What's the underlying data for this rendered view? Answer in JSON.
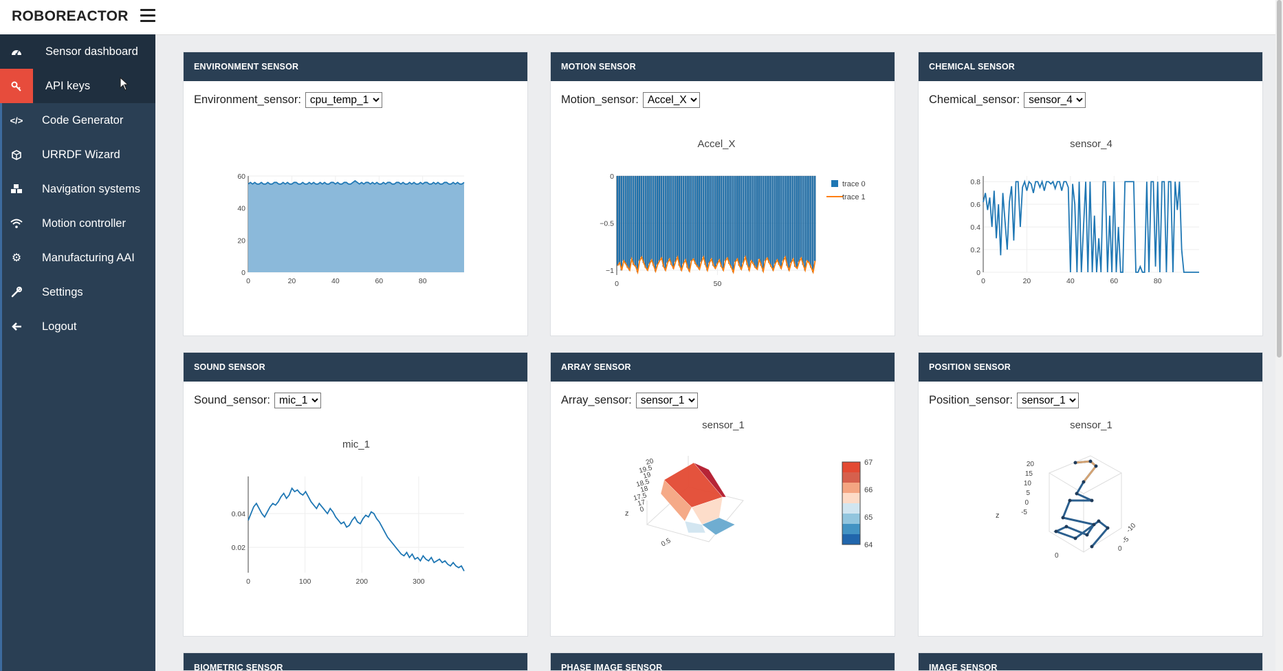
{
  "app": {
    "title": "ROBOREACTOR"
  },
  "sidebar": {
    "items": [
      {
        "label": "Sensor dashboard",
        "icon": "dashboard-icon"
      },
      {
        "label": "API keys",
        "icon": "key-icon"
      },
      {
        "label": "Code Generator",
        "icon": "code-icon"
      },
      {
        "label": "URRDF Wizard",
        "icon": "cube-icon"
      },
      {
        "label": "Navigation systems",
        "icon": "cubes-icon"
      },
      {
        "label": "Motion controller",
        "icon": "wifi-icon"
      },
      {
        "label": "Manufacturing AAI",
        "icon": "gear-icon"
      },
      {
        "label": "Settings",
        "icon": "wrench-icon"
      },
      {
        "label": "Logout",
        "icon": "arrow-left-icon"
      }
    ]
  },
  "panels": {
    "environment": {
      "title": "ENVIRONMENT SENSOR",
      "control_label": "Environment_sensor:",
      "selected": "cpu_temp_1"
    },
    "motion": {
      "title": "MOTION SENSOR",
      "control_label": "Motion_sensor:",
      "selected": "Accel_X"
    },
    "chemical": {
      "title": "CHEMICAL SENSOR",
      "control_label": "Chemical_sensor:",
      "selected": "sensor_4"
    },
    "sound": {
      "title": "SOUND SENSOR",
      "control_label": "Sound_sensor:",
      "selected": "mic_1"
    },
    "array": {
      "title": "ARRAY SENSOR",
      "control_label": "Array_sensor:",
      "selected": "sensor_1"
    },
    "position": {
      "title": "POSITION SENSOR",
      "control_label": "Position_sensor:",
      "selected": "sensor_1"
    },
    "biometric": {
      "title": "BIOMETRIC SENSOR"
    },
    "phase_image": {
      "title": "PHASE IMAGE SENSOR"
    },
    "image": {
      "title": "IMAGE SENSOR"
    }
  },
  "colors": {
    "sidebar": "#2a3f54",
    "active": "#e74c3c",
    "trace0": "#1f77b4",
    "trace1": "#ff7f0e"
  },
  "chart_data": [
    {
      "id": "environment",
      "type": "area",
      "title": "",
      "xlim": [
        0,
        99
      ],
      "ylim": [
        0,
        60
      ],
      "xticks": [
        0,
        20,
        40,
        60,
        80
      ],
      "yticks": [
        0,
        20,
        40,
        60
      ],
      "series": [
        {
          "values": [
            55,
            56,
            55,
            56,
            55,
            55,
            56,
            55,
            55,
            56,
            55,
            55,
            56,
            56,
            55,
            55,
            56,
            55,
            56,
            55,
            55,
            56,
            56,
            55,
            55,
            56,
            55,
            55,
            56,
            55,
            56,
            55,
            55,
            56,
            55,
            56,
            55,
            55,
            56,
            56,
            55,
            56,
            55,
            55,
            56,
            56,
            55,
            55,
            56,
            57,
            56,
            55,
            56,
            55,
            56,
            56,
            55,
            56,
            55,
            56,
            55,
            55,
            56,
            55,
            56,
            56,
            55,
            55,
            56,
            56,
            55,
            56,
            55,
            55,
            56,
            55,
            56,
            55,
            55,
            56,
            55,
            56,
            56,
            55,
            55,
            56,
            55,
            56,
            55,
            55,
            56,
            56,
            55,
            55,
            56,
            55,
            56,
            55,
            55,
            56
          ]
        }
      ]
    },
    {
      "id": "motion",
      "type": "bar",
      "title": "Accel_X",
      "xlim": [
        0,
        99
      ],
      "ylim": [
        -1.05,
        0
      ],
      "xticks": [
        0,
        50
      ],
      "yticks": [
        0,
        -0.5,
        -1
      ],
      "ytick_labels": [
        "0",
        "−0.5",
        "−1"
      ],
      "legend": [
        "trace 0",
        "trace 1"
      ],
      "series": [
        {
          "name": "trace 0",
          "values": [
            -0.95,
            -0.92,
            -1,
            -0.9,
            -0.93,
            -0.97,
            -1,
            -0.88,
            -0.94,
            -0.96,
            -1.02,
            -0.9,
            -0.86,
            -0.92,
            -0.97,
            -1,
            -0.93,
            -0.89,
            -0.95,
            -1.01,
            -0.94,
            -0.9,
            -0.87,
            -0.96,
            -1,
            -0.92,
            -0.88,
            -0.94,
            -0.98,
            -0.91,
            -0.86,
            -0.95,
            -1,
            -0.93,
            -0.89,
            -0.97,
            -1.01,
            -0.9,
            -0.88,
            -0.93,
            -0.96,
            -0.99,
            -0.91,
            -0.86,
            -0.94,
            -1,
            -0.92,
            -0.88,
            -0.95,
            -0.98,
            -0.93,
            -0.89,
            -0.96,
            -1,
            -0.9,
            -0.87,
            -0.93,
            -0.97,
            -1.02,
            -0.91,
            -0.88,
            -0.95,
            -0.99,
            -0.92,
            -0.86,
            -0.94,
            -1,
            -0.9,
            -0.93,
            -0.97,
            -0.99,
            -0.88,
            -0.95,
            -1.01,
            -0.9,
            -0.87,
            -0.92,
            -0.96,
            -1,
            -0.93,
            -0.89,
            -0.94,
            -0.98,
            -0.9,
            -0.86,
            -0.95,
            -1,
            -0.92,
            -0.88,
            -0.96,
            -0.98,
            -0.91,
            -0.87,
            -0.94,
            -1,
            -0.9,
            -0.92,
            -0.97,
            -1.02,
            -0.9
          ]
        },
        {
          "name": "trace 1"
        }
      ]
    },
    {
      "id": "chemical",
      "type": "line",
      "title": "sensor_4",
      "xlim": [
        0,
        99
      ],
      "ylim": [
        0,
        0.85
      ],
      "xticks": [
        0,
        20,
        40,
        60,
        80
      ],
      "yticks": [
        0,
        0.2,
        0.4,
        0.6,
        0.8
      ],
      "series": [
        {
          "values": [
            0.62,
            0.7,
            0.55,
            0.66,
            0.4,
            0.72,
            0.3,
            0.6,
            0.15,
            0.7,
            0.45,
            0.2,
            0.62,
            0.76,
            0.28,
            0.8,
            0.8,
            0.4,
            0.75,
            0.8,
            0.72,
            0.8,
            0.78,
            0.7,
            0.8,
            0.8,
            0.75,
            0.8,
            0.72,
            0.8,
            0.8,
            0.78,
            0.8,
            0.74,
            0.8,
            0.8,
            0.72,
            0.8,
            0.8,
            0.75,
            0.0,
            0.78,
            0.6,
            0.0,
            0.8,
            0.0,
            0.4,
            0.8,
            0.0,
            0.8,
            0.0,
            0.5,
            0.0,
            0.3,
            0.0,
            0.8,
            0.8,
            0.0,
            0.5,
            0.0,
            0.8,
            0.0,
            0.4,
            0.0,
            0.0,
            0.8,
            0.8,
            0.8,
            0.8,
            0.8,
            0.0,
            0.0,
            0.05,
            0.0,
            0.0,
            0.8,
            0.0,
            0.8,
            0.8,
            0.05,
            0.8,
            0.0,
            0.8,
            0.8,
            0.0,
            0.8,
            0.8,
            0.0,
            0.8,
            0.55,
            0.8,
            0.2,
            0.0,
            0.0,
            0.0,
            0.0,
            0.0,
            0.0,
            0.0,
            0.0
          ]
        }
      ]
    },
    {
      "id": "sound",
      "type": "line",
      "title": "mic_1",
      "xlim": [
        0,
        380
      ],
      "ylim": [
        0.005,
        0.062
      ],
      "xticks": [
        0,
        100,
        200,
        300
      ],
      "yticks": [
        0.02,
        0.04
      ],
      "series": [
        {
          "values": [
            0.036,
            0.04,
            0.044,
            0.046,
            0.043,
            0.04,
            0.038,
            0.041,
            0.044,
            0.046,
            0.045,
            0.047,
            0.05,
            0.052,
            0.049,
            0.051,
            0.055,
            0.053,
            0.054,
            0.052,
            0.051,
            0.053,
            0.05,
            0.047,
            0.045,
            0.043,
            0.046,
            0.044,
            0.042,
            0.04,
            0.043,
            0.041,
            0.038,
            0.036,
            0.034,
            0.035,
            0.032,
            0.033,
            0.036,
            0.038,
            0.035,
            0.034,
            0.037,
            0.039,
            0.038,
            0.041,
            0.04,
            0.037,
            0.035,
            0.032,
            0.029,
            0.026,
            0.024,
            0.022,
            0.02,
            0.018,
            0.016,
            0.015,
            0.017,
            0.014,
            0.016,
            0.013,
            0.014,
            0.012,
            0.015,
            0.013,
            0.012,
            0.014,
            0.011,
            0.012,
            0.013,
            0.011,
            0.012,
            0.01,
            0.009,
            0.011,
            0.009,
            0.008,
            0.009,
            0.006
          ]
        }
      ]
    },
    {
      "id": "array",
      "type": "heatmap",
      "title": "sensor_1",
      "colorbar_ticks": [
        64,
        65,
        66,
        67
      ],
      "z_ticks": [
        "20",
        "19.5",
        "19",
        "18.5",
        "18",
        "17.5",
        "17",
        "0"
      ],
      "x_ticks": [
        "0.5"
      ],
      "axis_label": "z"
    },
    {
      "id": "position",
      "type": "scatter",
      "title": "sensor_1",
      "z_ticks": [
        "20",
        "15",
        "10",
        "5",
        "0",
        "-5"
      ],
      "x_ticks": [
        "0",
        "0"
      ],
      "y_ticks": [
        "-10",
        "-5"
      ],
      "axis_label": "z"
    }
  ]
}
